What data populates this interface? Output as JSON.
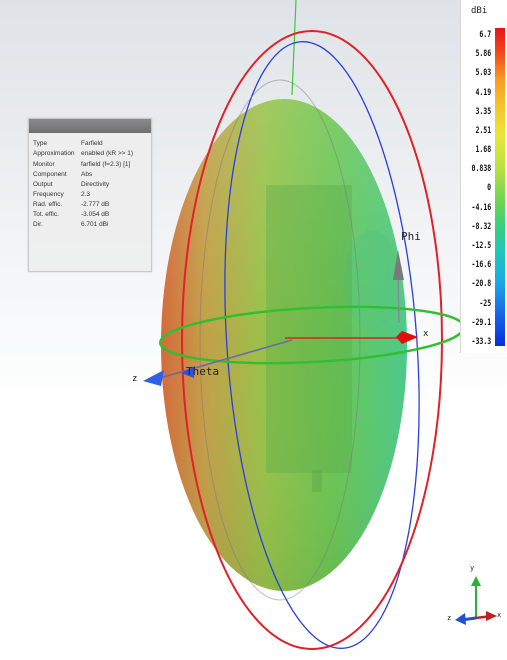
{
  "info_panel": {
    "rows": [
      {
        "key": "Type",
        "value": "Farfield"
      },
      {
        "key": "Approximation",
        "value": "enabled (kR >> 1)"
      },
      {
        "key": "Monitor",
        "value": "farfield (f=2.3) [1]"
      },
      {
        "key": "Component",
        "value": "Abs"
      },
      {
        "key": "Output",
        "value": "Directivity"
      },
      {
        "key": "Frequency",
        "value": "2.3"
      },
      {
        "key": "Rad. effic.",
        "value": "-2.777 dB"
      },
      {
        "key": "Tot. effic.",
        "value": "-3.054 dB"
      },
      {
        "key": "Dir.",
        "value": "6.701 dBi"
      }
    ]
  },
  "legend": {
    "unit": "dBi",
    "ticks": [
      "6.7",
      "5.86",
      "5.03",
      "4.19",
      "3.35",
      "2.51",
      "1.68",
      "0.838",
      "0",
      "-4.16",
      "-8.32",
      "-12.5",
      "-16.6",
      "-20.8",
      "-25",
      "-29.1",
      "-33.3"
    ],
    "colors": {
      "max": "#e8141a",
      "mid": "#6fd650",
      "min": "#0a2ed8"
    }
  },
  "axes": {
    "phi_label": "Phi",
    "theta_label": "Theta",
    "x_label": "x",
    "z_label": "z",
    "mini_x_label": "x",
    "mini_y_label": "y",
    "mini_z_label": "z"
  },
  "colors": {
    "theta_circle": "#e0212a",
    "phi_circle": "#2a3fe0",
    "equator": "#2fbf2f",
    "z_axis": "#3060e8",
    "x_axis": "#e02020"
  }
}
